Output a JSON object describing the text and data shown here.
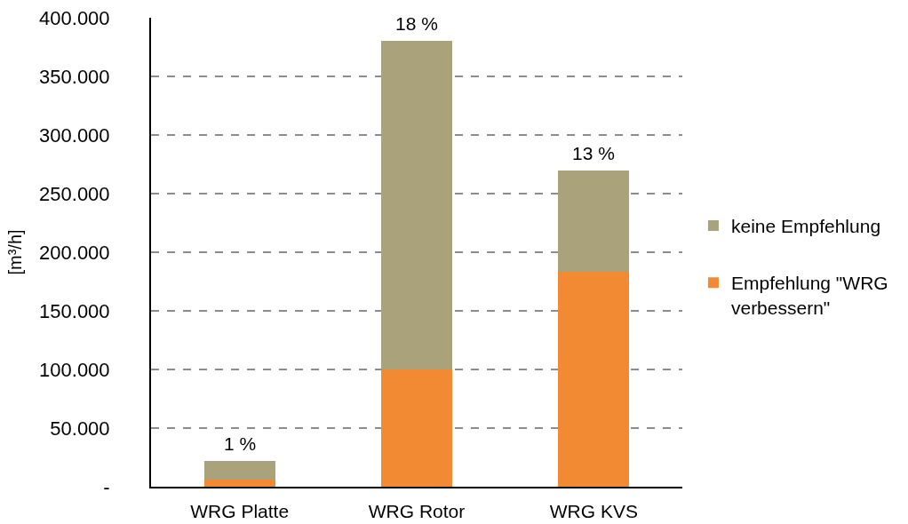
{
  "chart_data": {
    "type": "bar",
    "categories": [
      "WRG Platte",
      "WRG Rotor",
      "WRG KVS"
    ],
    "series": [
      {
        "name": "Empfehlung \"WRG verbessern\"",
        "color": "#f28a33",
        "values": [
          6000,
          100000,
          184000
        ]
      },
      {
        "name": "keine Empfehlung",
        "color": "#aaa27a",
        "values": [
          16000,
          280000,
          86000
        ]
      }
    ],
    "stacked": true,
    "ylabel": "[m³/h]",
    "ylim": [
      0,
      400000
    ],
    "yticks": [
      {
        "value": 0,
        "label": "-"
      },
      {
        "value": 50000,
        "label": "50.000"
      },
      {
        "value": 100000,
        "label": "100.000"
      },
      {
        "value": 150000,
        "label": "150.000"
      },
      {
        "value": 200000,
        "label": "200.000"
      },
      {
        "value": 250000,
        "label": "250.000"
      },
      {
        "value": 300000,
        "label": "300.000"
      },
      {
        "value": 350000,
        "label": "350.000"
      },
      {
        "value": 400000,
        "label": "400.000"
      }
    ],
    "annotations": [
      {
        "text": "1 %",
        "x": "WRG Platte",
        "y": 22000
      },
      {
        "text": "18 %",
        "x": "WRG Rotor",
        "y": 380000
      },
      {
        "text": "13 %",
        "x": "WRG KVS",
        "y": 270000
      }
    ],
    "grid": "y",
    "legend": "right"
  }
}
